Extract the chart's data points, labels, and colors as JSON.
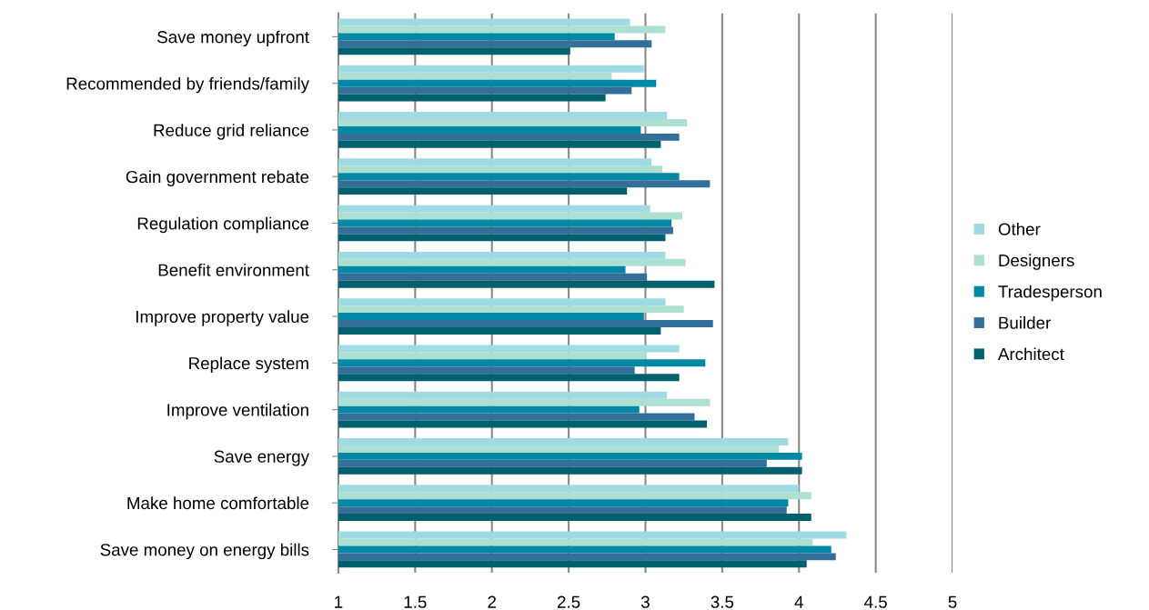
{
  "chart_data": {
    "type": "bar",
    "orientation": "horizontal",
    "categories": [
      "Save money upfront",
      "Recommended by friends/family",
      "Reduce grid reliance",
      "Gain government rebate",
      "Regulation compliance",
      "Benefit environment",
      "Improve property value",
      "Replace system",
      "Improve ventilation",
      "Save energy",
      "Make home comfortable",
      "Save money on energy bills"
    ],
    "series": [
      {
        "name": "Other",
        "color": "#a0dbe3",
        "values": [
          2.9,
          2.99,
          3.14,
          3.04,
          3.03,
          3.13,
          3.13,
          3.22,
          3.14,
          3.93,
          4.0,
          4.31
        ]
      },
      {
        "name": "Designers",
        "color": "#aedfd3",
        "values": [
          3.13,
          2.78,
          3.27,
          3.11,
          3.24,
          3.26,
          3.25,
          3.01,
          3.42,
          3.87,
          4.08,
          4.09
        ]
      },
      {
        "name": "Tradesperson",
        "color": "#0088a5",
        "values": [
          2.8,
          3.07,
          2.97,
          3.22,
          3.17,
          2.87,
          2.99,
          3.39,
          2.96,
          4.02,
          3.93,
          4.21
        ]
      },
      {
        "name": "Builder",
        "color": "#336f99",
        "values": [
          3.04,
          2.91,
          3.22,
          3.42,
          3.18,
          3.01,
          3.44,
          2.93,
          3.32,
          3.79,
          3.92,
          4.24
        ]
      },
      {
        "name": "Architect",
        "color": "#00606e",
        "values": [
          2.51,
          2.74,
          3.1,
          2.88,
          3.13,
          3.45,
          3.1,
          3.22,
          3.4,
          4.02,
          4.08,
          4.05
        ]
      }
    ],
    "xlim": [
      1,
      5
    ],
    "xticks": [
      1,
      1.5,
      2,
      2.5,
      3,
      3.5,
      4,
      4.5,
      5
    ],
    "grid": "x",
    "legend": "right"
  }
}
